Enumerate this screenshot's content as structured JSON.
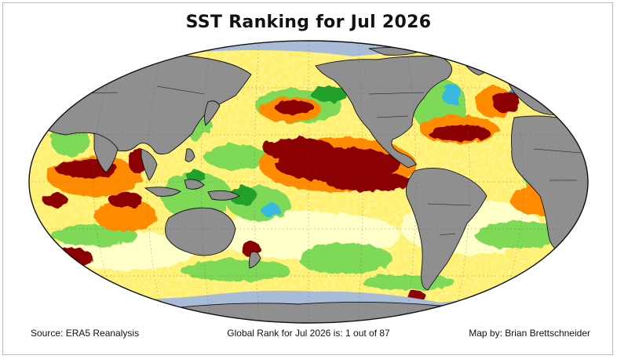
{
  "title": "SST Ranking for Jul 2026",
  "footer": {
    "source": "Source: ERA5 Reanalysis",
    "rank": "Global Rank for Jul 2026 is: 1 out of 87",
    "credit": "Map by: Brian Brettschneider"
  },
  "legend_colors": {
    "record_warm": "#8b0000",
    "much_above": "#cc1a0a",
    "above": "#ff8c00",
    "warm": "#ffd200",
    "slightly_warm": "#ffff96",
    "near_normal": "#ffffff",
    "cool": "#7ed957",
    "much_cool": "#22a12a",
    "record_cool": "#39b9e0",
    "sea_ice": "#a8bcd8",
    "land": "#8f8f8f"
  },
  "projection": "Robinson (Pacific-centered)"
}
